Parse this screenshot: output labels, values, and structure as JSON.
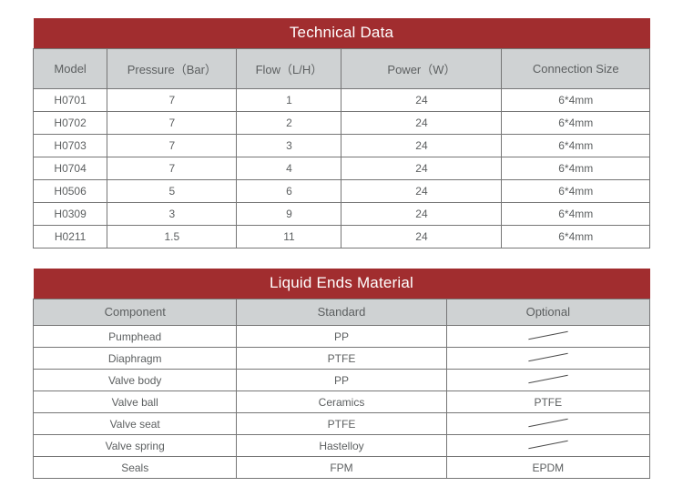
{
  "tech": {
    "title": "Technical Data",
    "title_bg": "#a12d2f",
    "title_color": "#ffffff",
    "title_fontsize": 17,
    "header_bg": "#cfd2d3",
    "header_text_color": "#5c5f60",
    "header_fontsize": 13,
    "cell_bg": "#ffffff",
    "cell_text_color": "#5c5f60",
    "cell_fontsize": 12,
    "border_color": "#767676",
    "col_widths_pct": [
      12,
      21,
      17,
      26,
      24
    ],
    "columns": [
      "Model",
      "Pressure（Bar）",
      "Flow（L/H）",
      "Power（W）",
      "Connection Size"
    ],
    "rows": [
      [
        "H0701",
        "7",
        "1",
        "24",
        "6*4mm"
      ],
      [
        "H0702",
        "7",
        "2",
        "24",
        "6*4mm"
      ],
      [
        "H0703",
        "7",
        "3",
        "24",
        "6*4mm"
      ],
      [
        "H0704",
        "7",
        "4",
        "24",
        "6*4mm"
      ],
      [
        "H0506",
        "5",
        "6",
        "24",
        "6*4mm"
      ],
      [
        "H0309",
        "3",
        "9",
        "24",
        "6*4mm"
      ],
      [
        "H0211",
        "1.5",
        "11",
        "24",
        "6*4mm"
      ]
    ]
  },
  "liquid": {
    "title": "Liquid Ends Material",
    "title_bg": "#a12d2f",
    "title_color": "#ffffff",
    "title_fontsize": 17,
    "header_bg": "#cfd2d3",
    "header_text_color": "#5c5f60",
    "header_fontsize": 13,
    "cell_bg": "#ffffff",
    "cell_text_color": "#5c5f60",
    "cell_fontsize": 12,
    "border_color": "#767676",
    "slash_color": "#4a4a4a",
    "col_widths_pct": [
      33,
      34,
      33
    ],
    "columns": [
      "Component",
      "Standard",
      "Optional"
    ],
    "rows": [
      [
        "Pumphead",
        "PP",
        "/"
      ],
      [
        "Diaphragm",
        "PTFE",
        "/"
      ],
      [
        "Valve body",
        "PP",
        "/"
      ],
      [
        "Valve ball",
        "Ceramics",
        "PTFE"
      ],
      [
        "Valve seat",
        "PTFE",
        "/"
      ],
      [
        "Valve spring",
        "Hastelloy",
        "/"
      ],
      [
        "Seals",
        "FPM",
        "EPDM"
      ]
    ]
  }
}
